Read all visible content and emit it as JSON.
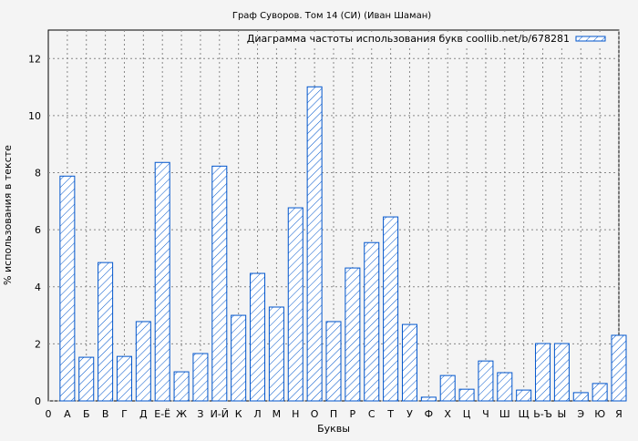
{
  "chart_data": {
    "type": "bar",
    "title": "Граф Суворов. Том 14 (СИ) (Иван Шаман)",
    "xlabel": "Буквы",
    "ylabel": "% использования в тексте",
    "legend": "Диаграмма частоты использования букв coollib.net/b/678281",
    "legend_position": "top-right",
    "x_origin_label": "0",
    "categories": [
      "А",
      "Б",
      "В",
      "Г",
      "Д",
      "Е-Ё",
      "Ж",
      "З",
      "И-Й",
      "К",
      "Л",
      "М",
      "Н",
      "О",
      "П",
      "Р",
      "С",
      "Т",
      "У",
      "Ф",
      "Х",
      "Ц",
      "Ч",
      "Ш",
      "Щ",
      "Ь-Ъ",
      "Ы",
      "Э",
      "Ю",
      "Я"
    ],
    "values": [
      7.88,
      1.53,
      4.85,
      1.56,
      2.78,
      8.36,
      1.02,
      1.66,
      8.23,
      3.0,
      4.47,
      3.29,
      6.77,
      11.01,
      2.78,
      4.66,
      5.55,
      6.45,
      2.68,
      0.13,
      0.89,
      0.41,
      1.4,
      0.99,
      0.38,
      2.01,
      2.01,
      0.29,
      0.61,
      2.3
    ],
    "yticks": [
      0,
      2,
      4,
      6,
      8,
      10,
      12
    ],
    "ylim": [
      0,
      13
    ],
    "grid": true,
    "bar_color": "#0055cc",
    "bar_pattern": "diagonal-hatch"
  }
}
